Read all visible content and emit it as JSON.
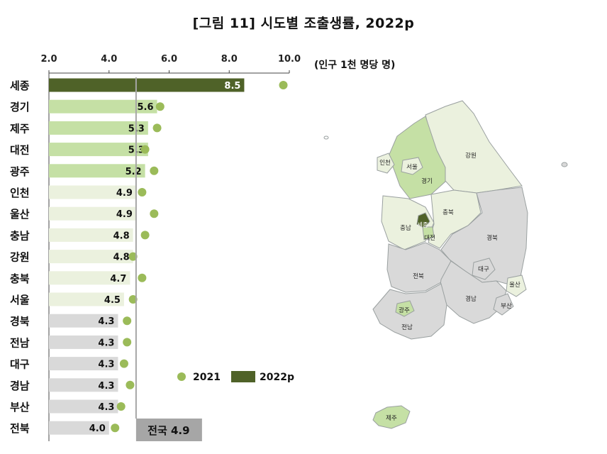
{
  "title": "[그림 11] 시도별 조출생률, 2022p",
  "unit": "(인구 1천 명당 명)",
  "chart_data": {
    "type": "bar",
    "orientation": "horizontal",
    "xlim": [
      2.0,
      10.0
    ],
    "x_ticks": [
      "2.0",
      "4.0",
      "6.0",
      "8.0",
      "10.0"
    ],
    "categories": [
      "세종",
      "경기",
      "제주",
      "대전",
      "광주",
      "인천",
      "울산",
      "충남",
      "강원",
      "충북",
      "서울",
      "경북",
      "전남",
      "대구",
      "경남",
      "부산",
      "전북"
    ],
    "series": [
      {
        "name": "2021",
        "marker": "dot",
        "values": [
          9.8,
          5.7,
          5.6,
          5.2,
          5.5,
          5.1,
          5.5,
          5.2,
          4.8,
          5.1,
          4.8,
          4.6,
          4.6,
          4.5,
          4.7,
          4.4,
          4.2
        ]
      },
      {
        "name": "2022p",
        "marker": "bar",
        "values": [
          8.5,
          5.6,
          5.3,
          5.3,
          5.2,
          4.9,
          4.9,
          4.8,
          4.8,
          4.7,
          4.5,
          4.3,
          4.3,
          4.3,
          4.3,
          4.3,
          4.0
        ]
      }
    ],
    "value_labels": [
      "8.5",
      "5.6",
      "5.3",
      "5.3",
      "5.2",
      "4.9",
      "4.9",
      "4.8",
      "4.8",
      "4.7",
      "4.5",
      "4.3",
      "4.3",
      "4.3",
      "4.3",
      "4.3",
      "4.0"
    ],
    "reference_line": {
      "value": 4.9,
      "label": "전국 4.9"
    },
    "legend": {
      "position": "bottom-right",
      "items": [
        "2021",
        "2022p"
      ]
    },
    "colors": {
      "highest": "#4f6228",
      "above_national": "#c5e0a5",
      "around_national": "#ebf1de",
      "below_national": "#d9d9d9",
      "dot_2021": "#9bbb59",
      "reference_line": "#a6a6a6",
      "reference_box": "#a6a6a6"
    },
    "bar_tiers": [
      "highest",
      "above_national",
      "above_national",
      "above_national",
      "above_national",
      "around_national",
      "around_national",
      "around_national",
      "around_national",
      "around_national",
      "around_national",
      "below_national",
      "below_national",
      "below_national",
      "below_national",
      "below_national",
      "below_national"
    ]
  },
  "map": {
    "regions": [
      {
        "name": "인천",
        "tier": "around_national"
      },
      {
        "name": "서울",
        "tier": "around_national"
      },
      {
        "name": "경기",
        "tier": "above_national"
      },
      {
        "name": "강원",
        "tier": "around_national"
      },
      {
        "name": "충남",
        "tier": "around_national"
      },
      {
        "name": "세종",
        "tier": "highest"
      },
      {
        "name": "대전",
        "tier": "above_national"
      },
      {
        "name": "충북",
        "tier": "around_national"
      },
      {
        "name": "경북",
        "tier": "below_national"
      },
      {
        "name": "대구",
        "tier": "below_national"
      },
      {
        "name": "전북",
        "tier": "below_national"
      },
      {
        "name": "울산",
        "tier": "around_national"
      },
      {
        "name": "경남",
        "tier": "below_national"
      },
      {
        "name": "부산",
        "tier": "below_national"
      },
      {
        "name": "광주",
        "tier": "above_national"
      },
      {
        "name": "전남",
        "tier": "below_national"
      },
      {
        "name": "제주",
        "tier": "above_national"
      }
    ]
  }
}
